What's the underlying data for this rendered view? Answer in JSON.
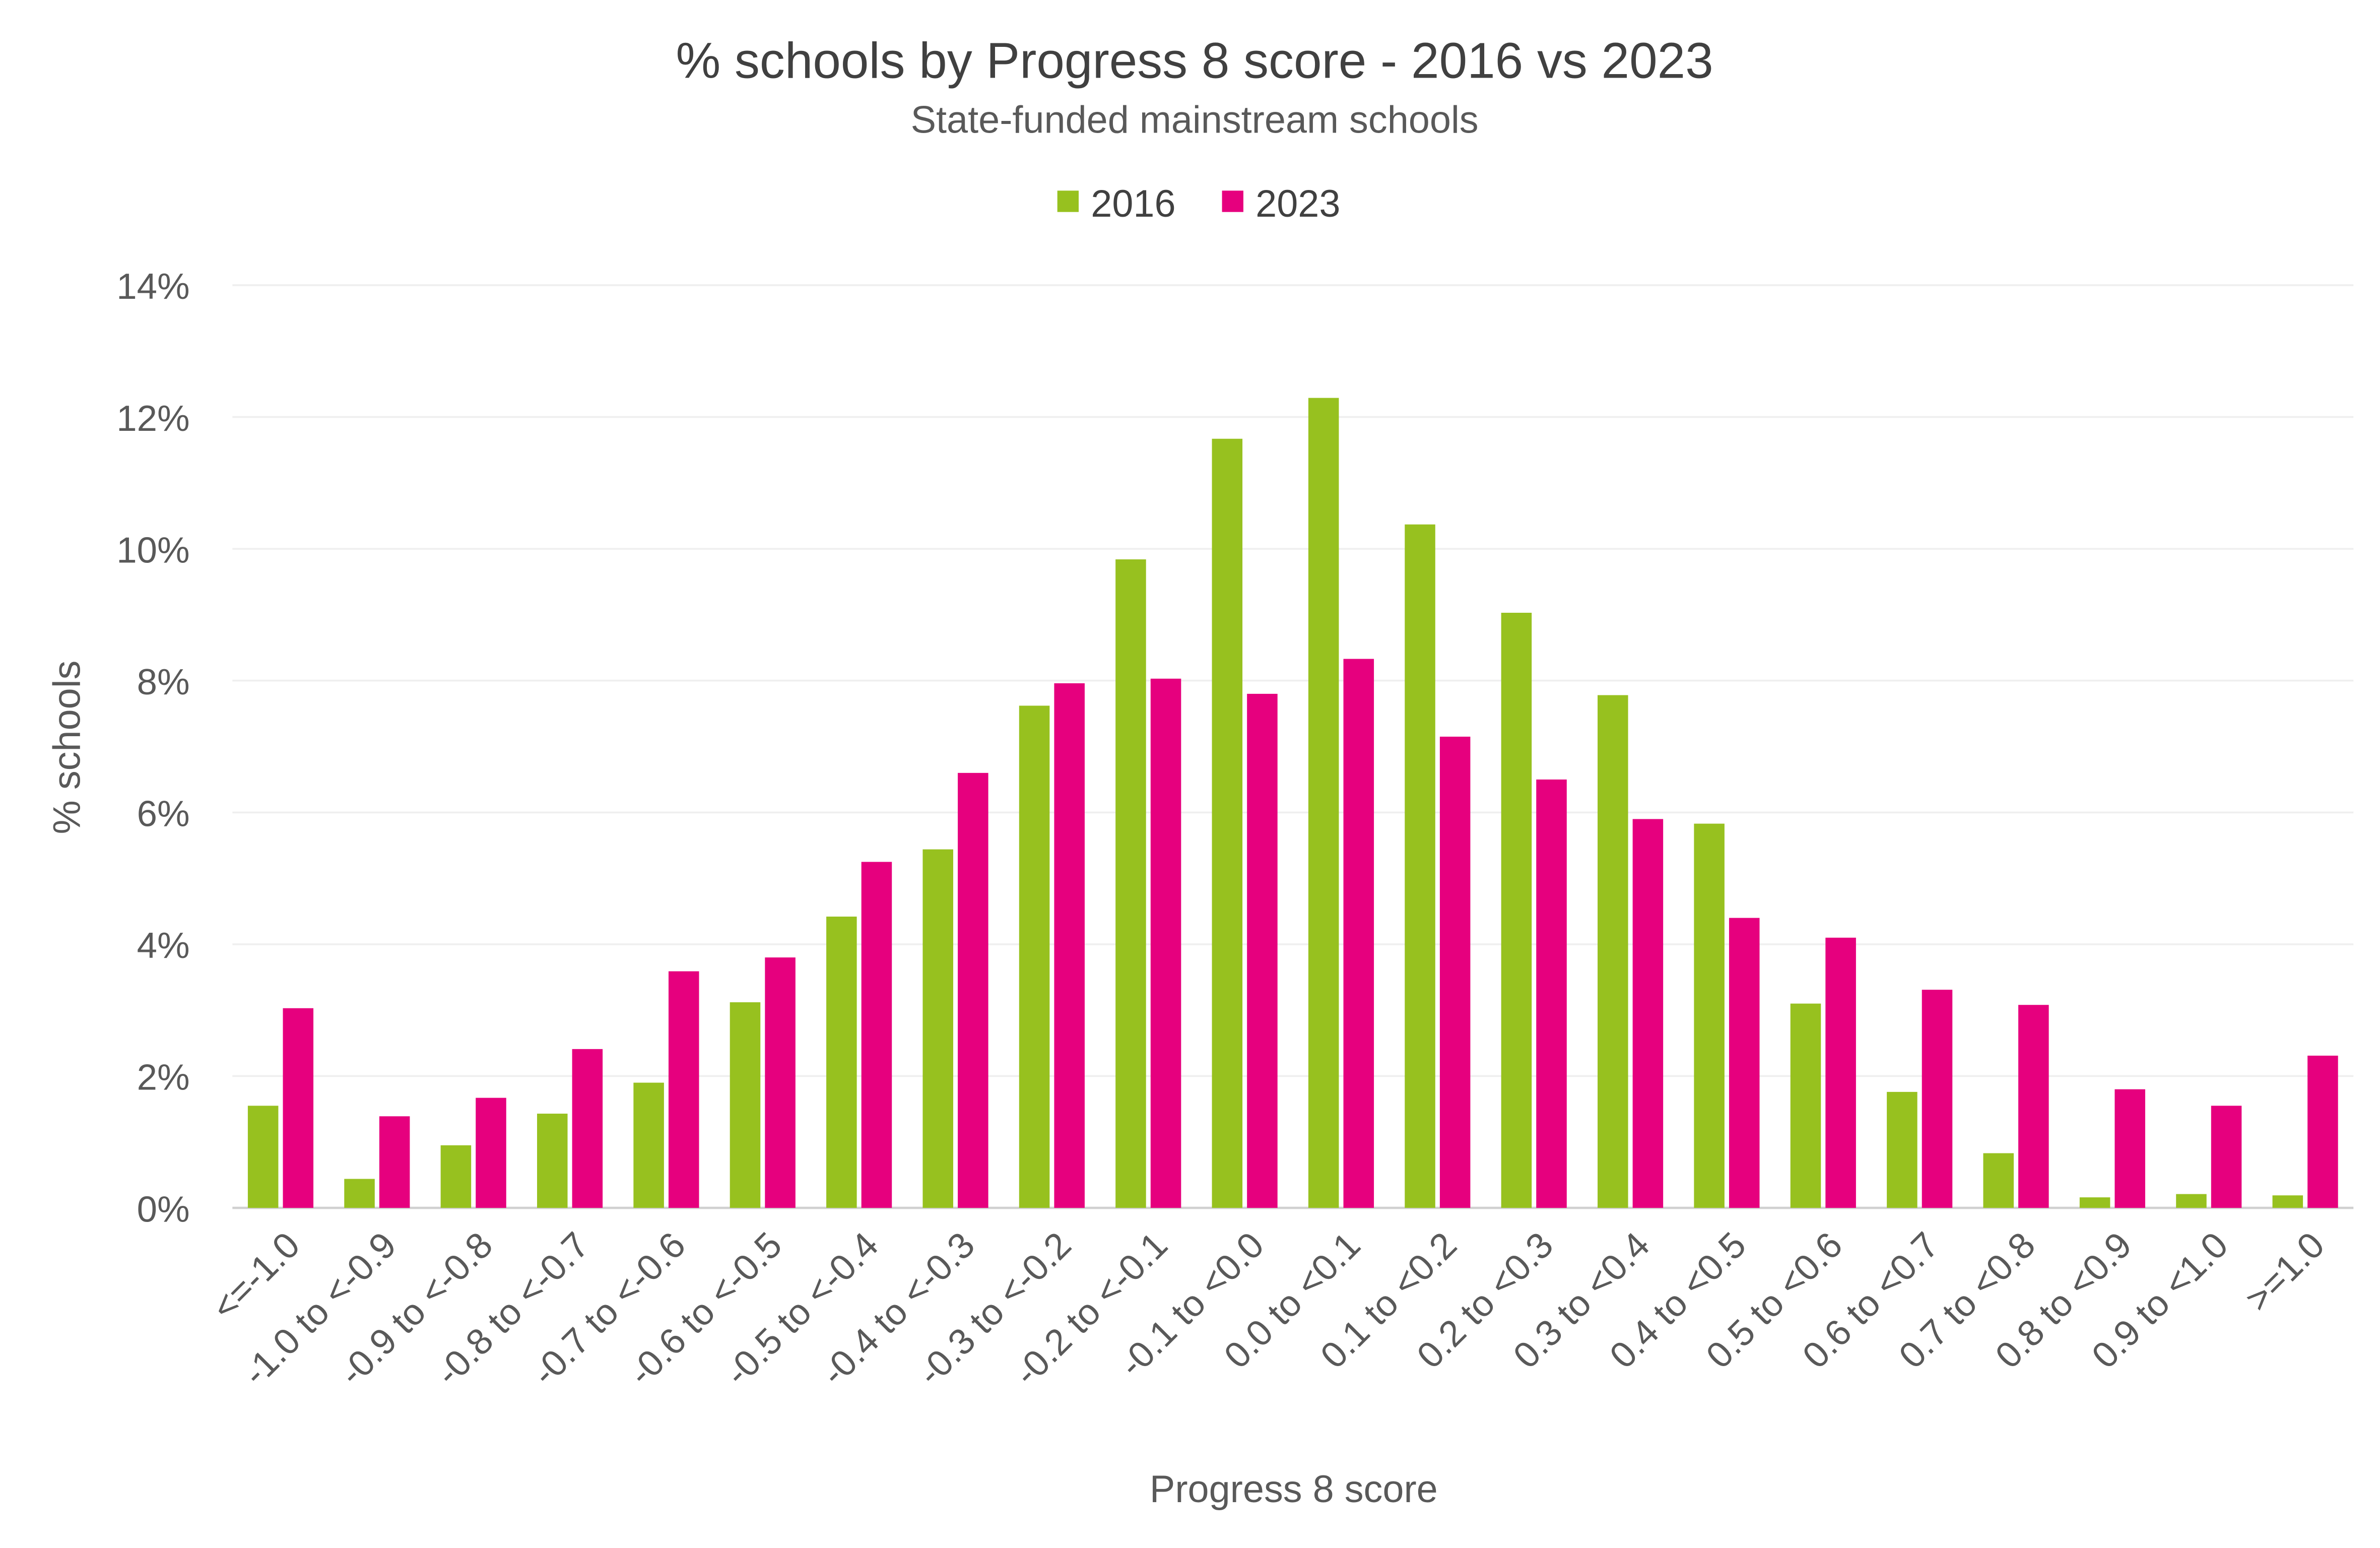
{
  "chart_data": {
    "type": "bar",
    "title": "% schools by Progress 8 score - 2016 vs 2023",
    "subtitle": "State-funded mainstream schools",
    "xlabel": "Progress 8 score",
    "ylabel": "% schools",
    "ylim": [
      0,
      14
    ],
    "yticks": [
      "0%",
      "2%",
      "4%",
      "6%",
      "8%",
      "10%",
      "12%",
      "14%"
    ],
    "grid": true,
    "legend_position": "top",
    "categories": [
      "<=-1.0",
      "-1.0 to <-0.9",
      "-0.9 to <-0.8",
      "-0.8 to <-0.7",
      "-0.7 to <-0.6",
      "-0.6 to <-0.5",
      "-0.5 to <-0.4",
      "-0.4 to <-0.3",
      "-0.3 to <-0.2",
      "-0.2 to <-0.1",
      "-0.1 to <0.0",
      "0.0 to <0.1",
      "0.1 to <0.2",
      "0.2 to <0.3",
      "0.3 to <0.4",
      "0.4 to <0.5",
      "0.5 to <0.6",
      "0.6 to <0.7",
      "0.7 to <0.8",
      "0.8 to <0.9",
      "0.9 to <1.0",
      ">=1.0"
    ],
    "series": [
      {
        "name": "2016",
        "color": "#97c11f",
        "values": [
          1.55,
          0.44,
          0.95,
          1.43,
          1.9,
          3.12,
          4.42,
          5.44,
          7.62,
          9.84,
          11.67,
          12.29,
          10.37,
          9.03,
          7.78,
          5.83,
          3.1,
          1.76,
          0.83,
          0.16,
          0.21,
          0.19
        ]
      },
      {
        "name": "2023",
        "color": "#e6007e",
        "values": [
          3.03,
          1.39,
          1.67,
          2.41,
          3.59,
          3.8,
          5.25,
          6.6,
          7.96,
          8.03,
          7.8,
          8.33,
          7.15,
          6.5,
          5.9,
          4.4,
          4.1,
          3.31,
          3.08,
          1.8,
          1.55,
          2.31
        ]
      }
    ]
  }
}
